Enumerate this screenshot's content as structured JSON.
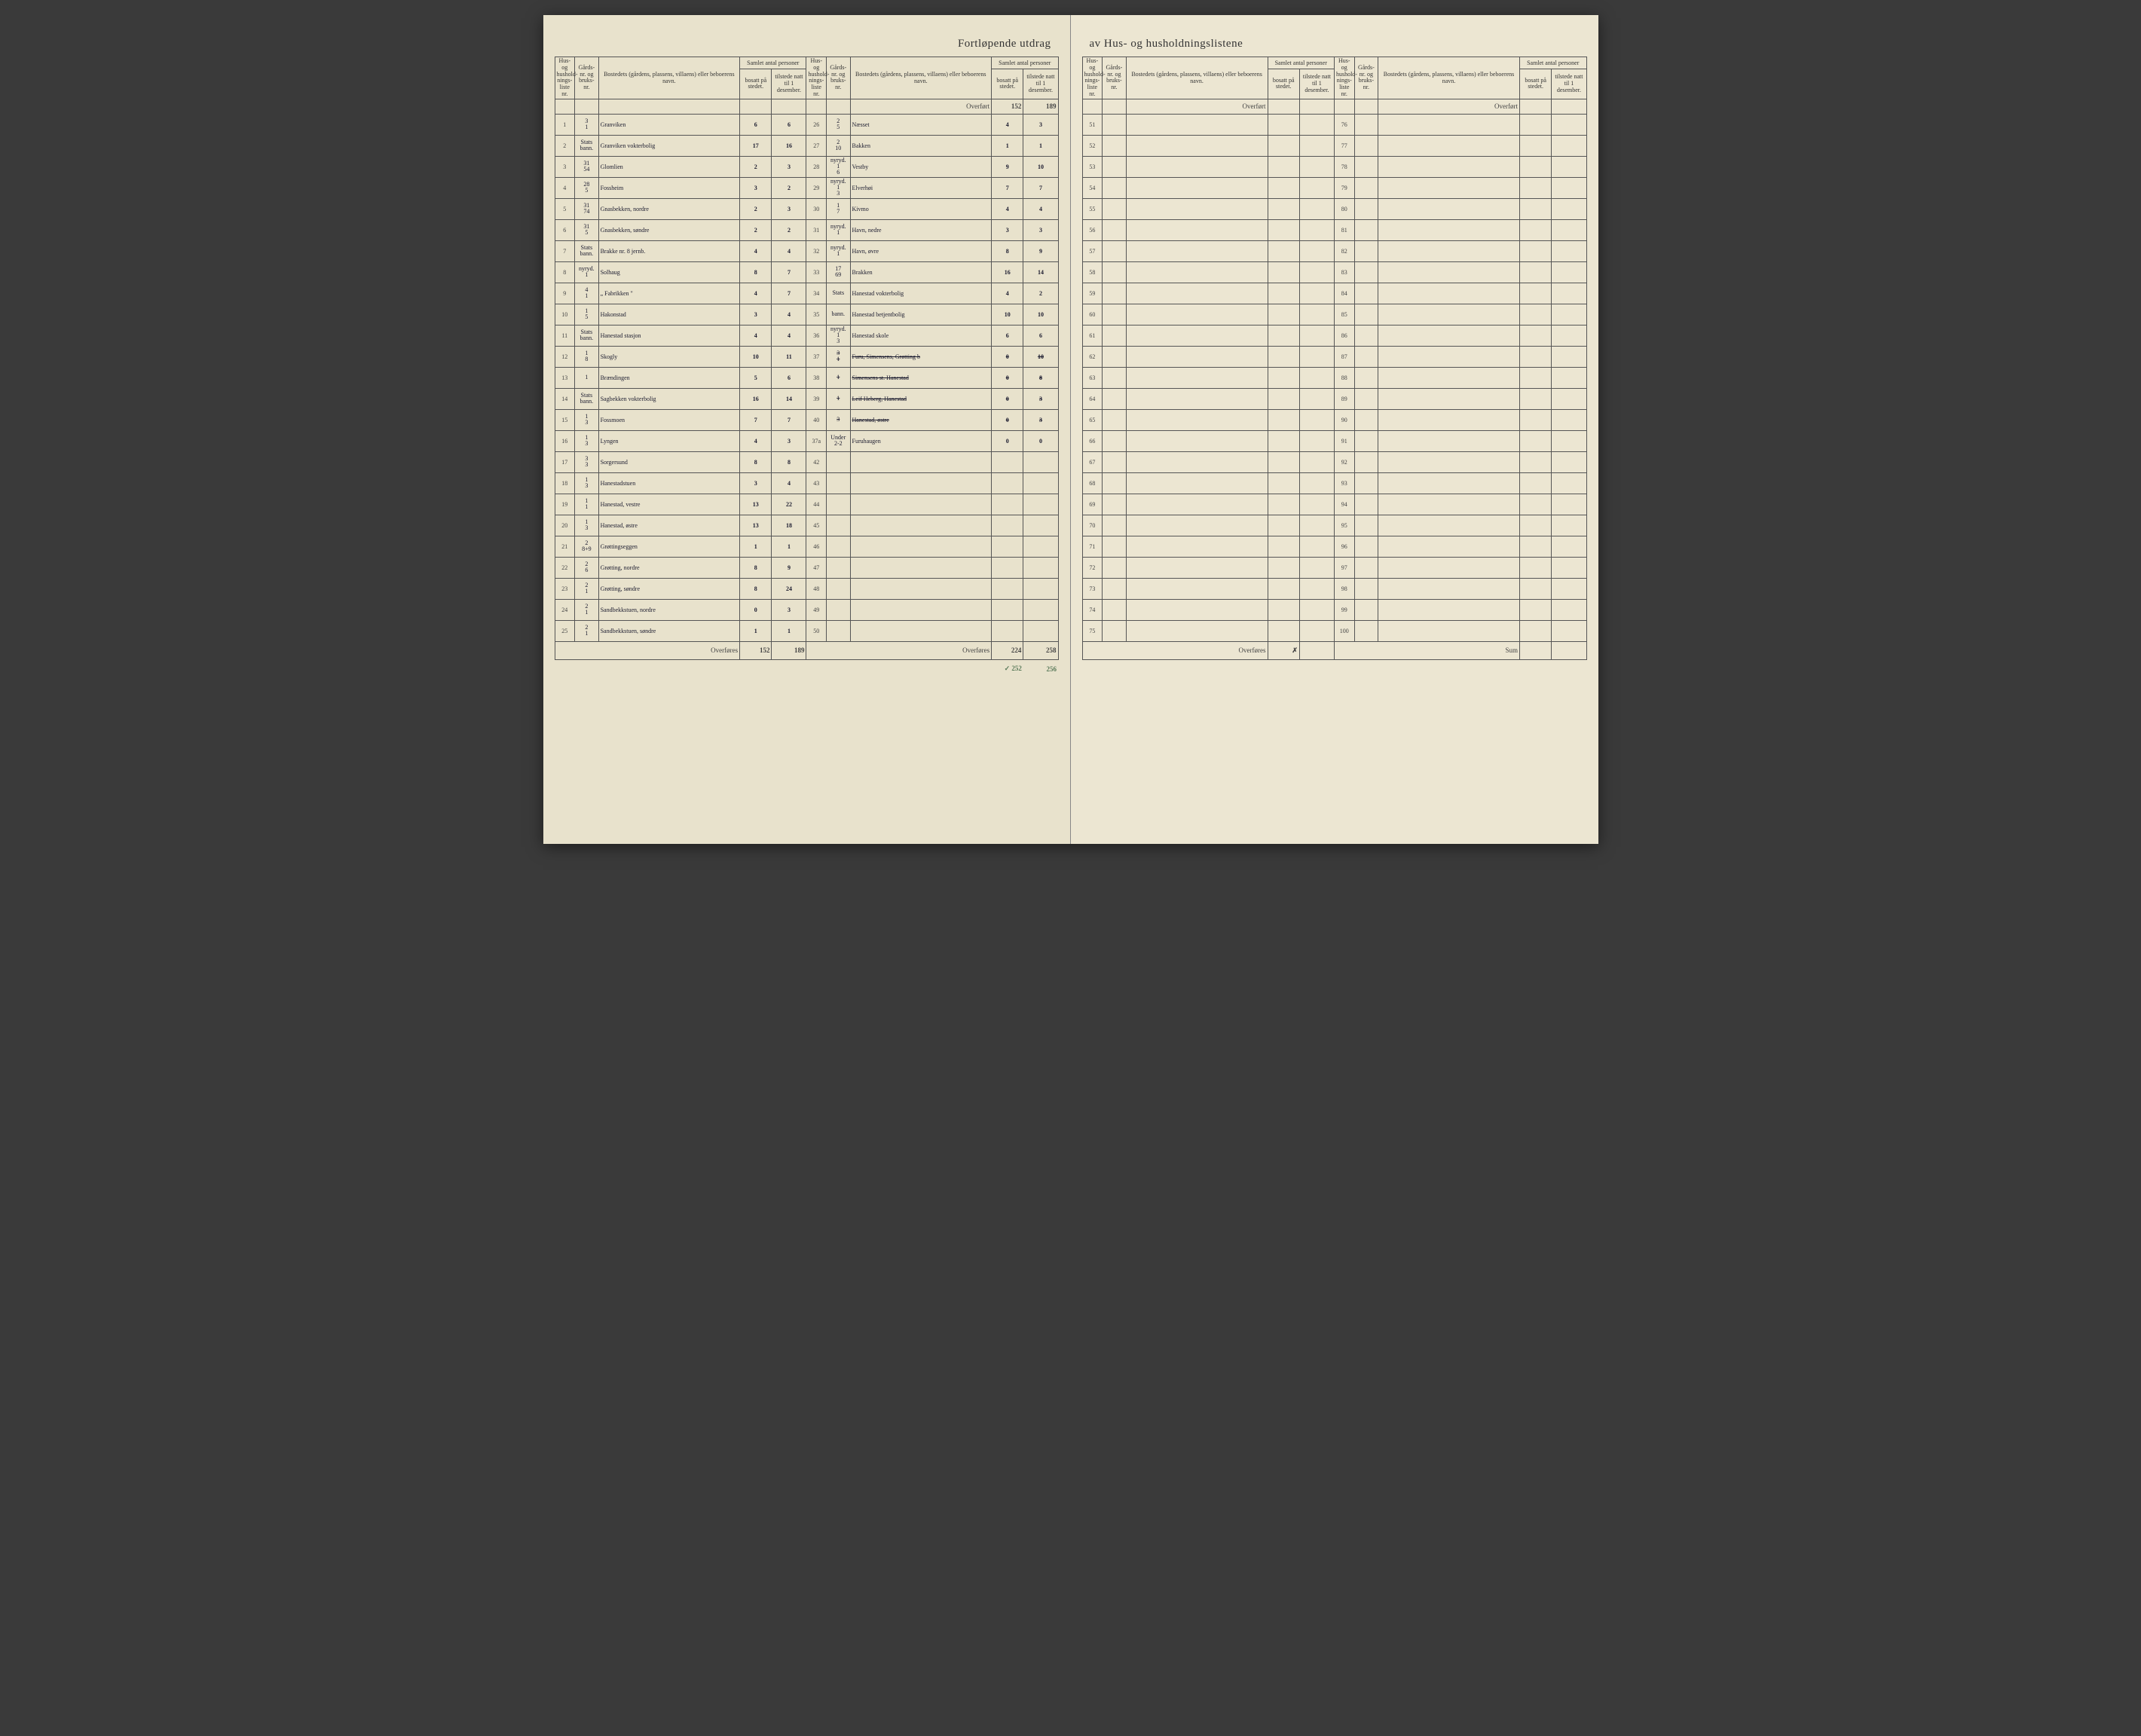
{
  "title_left": "Fortløpende utdrag",
  "title_right": "av Hus- og husholdningslistene",
  "headers": {
    "liste": "Hus- og hushold-nings-liste nr.",
    "gard": "Gårds-nr. og bruks-nr.",
    "bosted": "Bostedets (gårdens, plassens, villaens) eller beboerens navn.",
    "samlet": "Samlet antal personer",
    "bosatt": "bosatt på stedet.",
    "tilstede": "tilstede natt til 1 desember."
  },
  "labels": {
    "overfort": "Overført",
    "overfores": "Overføres",
    "sum": "Sum"
  },
  "page_left": {
    "col1": {
      "overfort_bosatt": "",
      "overfort_tilstede": "",
      "rows": [
        {
          "n": "1",
          "g": "3/1",
          "name": "Granviken",
          "b": "6",
          "t": "6"
        },
        {
          "n": "2",
          "g": "Stats bann.",
          "name": "Granviken vokterbolig",
          "b": "17",
          "t": "16"
        },
        {
          "n": "3",
          "g": "31/54",
          "name": "Glomlien",
          "b": "2",
          "t": "3"
        },
        {
          "n": "4",
          "g": "28/5",
          "name": "Fossheim",
          "b": "3",
          "t": "2"
        },
        {
          "n": "5",
          "g": "31/74",
          "name": "Gnasbekken, nordre",
          "b": "2",
          "t": "3"
        },
        {
          "n": "6",
          "g": "31/5",
          "name": "Gnasbekken, søndre",
          "b": "2",
          "t": "2"
        },
        {
          "n": "7",
          "g": "Stats bann.",
          "name": "Brakke nr. 8 jernb.",
          "b": "4",
          "t": "4"
        },
        {
          "n": "8",
          "g": "nyryd. 1",
          "name": "Solhaug",
          "b": "8",
          "t": "7"
        },
        {
          "n": "9",
          "g": "4/1",
          "name": "„ Fabrikken \"",
          "b": "4",
          "t": "7"
        },
        {
          "n": "10",
          "g": "1/5",
          "name": "Hakonstad",
          "b": "3",
          "t": "4"
        },
        {
          "n": "11",
          "g": "Stats bann.",
          "name": "Hanestad stasjon",
          "b": "4",
          "t": "4"
        },
        {
          "n": "12",
          "g": "1/8",
          "name": "Skogly",
          "b": "10",
          "t": "11"
        },
        {
          "n": "13",
          "g": "1",
          "name": "Brændingen",
          "b": "5",
          "t": "6"
        },
        {
          "n": "14",
          "g": "Stats bann.",
          "name": "Sagbekken vokterbolig",
          "b": "16",
          "t": "14"
        },
        {
          "n": "15",
          "g": "1/3",
          "name": "Fossmoen",
          "b": "7",
          "t": "7"
        },
        {
          "n": "16",
          "g": "1/3",
          "name": "Lyngen",
          "b": "4",
          "t": "3"
        },
        {
          "n": "17",
          "g": "3/3",
          "name": "Sorgersund",
          "b": "8",
          "t": "8"
        },
        {
          "n": "18",
          "g": "1/3",
          "name": "Hanestadstuen",
          "b": "3",
          "t": "4"
        },
        {
          "n": "19",
          "g": "1/1",
          "name": "Hanestad, vestre",
          "b": "13",
          "t": "22"
        },
        {
          "n": "20",
          "g": "1/3",
          "name": "Hanestad, østre",
          "b": "13",
          "t": "18"
        },
        {
          "n": "21",
          "g": "2/8+9",
          "name": "Grøttingseggen",
          "b": "1",
          "t": "1"
        },
        {
          "n": "22",
          "g": "2/6",
          "name": "Grøtting, nordre",
          "b": "8",
          "t": "9"
        },
        {
          "n": "23",
          "g": "2/1",
          "name": "Grøtting, søndre",
          "b": "8",
          "t": "24"
        },
        {
          "n": "24",
          "g": "2/1",
          "name": "Sandbekkstuen, nordre",
          "b": "0",
          "t": "3"
        },
        {
          "n": "25",
          "g": "2/1",
          "name": "Sandbekkstuen, søndre",
          "b": "1",
          "t": "1"
        }
      ],
      "overfores_bosatt": "152",
      "overfores_tilstede": "189"
    },
    "col2": {
      "overfort_bosatt": "152",
      "overfort_tilstede": "189",
      "rows": [
        {
          "n": "26",
          "g": "2/5",
          "name": "Næsset",
          "b": "4",
          "t": "3"
        },
        {
          "n": "27",
          "g": "2/10",
          "name": "Bakken",
          "b": "1",
          "t": "1"
        },
        {
          "n": "28",
          "g": "nyryd. 1/6",
          "name": "Vestby",
          "b": "9",
          "t": "10"
        },
        {
          "n": "29",
          "g": "nyryd. 1/3",
          "name": "Elverhøi",
          "b": "7",
          "t": "7"
        },
        {
          "n": "30",
          "g": "1/7",
          "name": "Kivmo",
          "b": "4",
          "t": "4"
        },
        {
          "n": "31",
          "g": "nyryd. 1",
          "name": "Havn, nedre",
          "b": "3",
          "t": "3"
        },
        {
          "n": "32",
          "g": "nyryd. 1",
          "name": "Havn, øvre",
          "b": "8",
          "t": "9"
        },
        {
          "n": "33",
          "g": "17/69",
          "name": "Brakken",
          "b": "16",
          "t": "14"
        },
        {
          "n": "34",
          "g": "Stats",
          "name": "Hanestad vokterbolig",
          "b": "4",
          "t": "2"
        },
        {
          "n": "35",
          "g": "bann.",
          "name": "Hanestad betjentbolig",
          "b": "10",
          "t": "10"
        },
        {
          "n": "36",
          "g": "nyryd. 1/3",
          "name": "Hanestad skole",
          "b": "6",
          "t": "6"
        },
        {
          "n": "37",
          "g": "3/1",
          "name": "Furu, Simensens, Grøtting b",
          "b": "0",
          "t": "10",
          "struck": true
        },
        {
          "n": "38",
          "g": "1",
          "name": "Simensens st. Hanestad",
          "b": "0",
          "t": "8",
          "struck": true
        },
        {
          "n": "39",
          "g": "1",
          "name": "Leif Heberg, Hanestad",
          "b": "0",
          "t": "3",
          "struck": true
        },
        {
          "n": "40",
          "g": "3",
          "name": "Hanestad, østre",
          "b": "0",
          "t": "3",
          "struck": true
        },
        {
          "n": "37a",
          "g": "Under 2-2",
          "name": "Furuhaugen",
          "b": "0",
          "t": "0"
        },
        {
          "n": "42",
          "g": "",
          "name": "",
          "b": "",
          "t": ""
        },
        {
          "n": "43",
          "g": "",
          "name": "",
          "b": "",
          "t": ""
        },
        {
          "n": "44",
          "g": "",
          "name": "",
          "b": "",
          "t": ""
        },
        {
          "n": "45",
          "g": "",
          "name": "",
          "b": "",
          "t": ""
        },
        {
          "n": "46",
          "g": "",
          "name": "",
          "b": "",
          "t": ""
        },
        {
          "n": "47",
          "g": "",
          "name": "",
          "b": "",
          "t": ""
        },
        {
          "n": "48",
          "g": "",
          "name": "",
          "b": "",
          "t": ""
        },
        {
          "n": "49",
          "g": "",
          "name": "",
          "b": "",
          "t": ""
        },
        {
          "n": "50",
          "g": "",
          "name": "",
          "b": "",
          "t": ""
        }
      ],
      "overfores_bosatt": "224",
      "overfores_tilstede": "258",
      "check_bosatt": "✓ 252",
      "check_tilstede": "256"
    }
  },
  "page_right": {
    "col1": {
      "start": 51,
      "end": 75,
      "overfores_mark": "✗"
    },
    "col2": {
      "start": 76,
      "end": 100
    }
  },
  "colors": {
    "paper_left": "#e8e2cc",
    "paper_right": "#ece6d2",
    "ink": "#1a1a2e",
    "rule": "#555555",
    "print": "#333333"
  }
}
